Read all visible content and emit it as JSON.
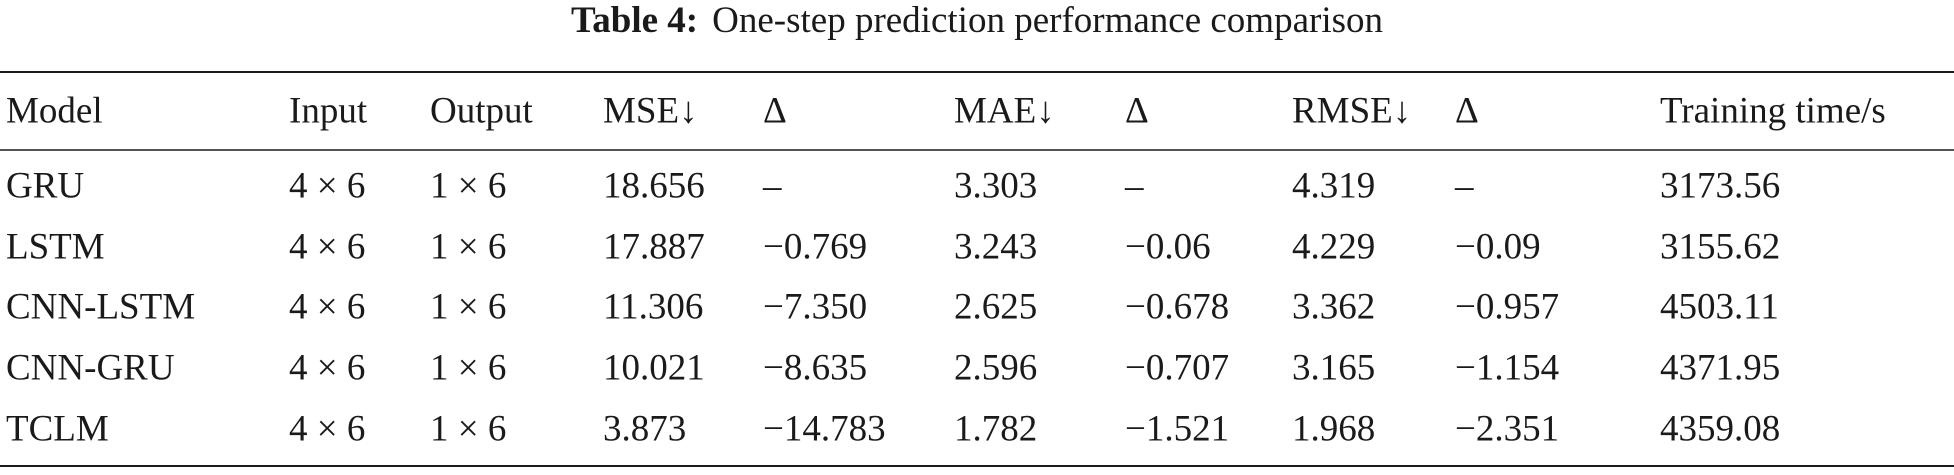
{
  "title": {
    "label": "Table 4:",
    "text": "One-step prediction performance comparison"
  },
  "table": {
    "header": [
      "Model",
      "Input",
      "Output",
      "MSE↓",
      "Δ",
      "MAE↓",
      "Δ",
      "RMSE↓",
      "Δ",
      "Training time/s"
    ],
    "rows": [
      [
        "GRU",
        "4 × 6",
        "1 × 6",
        "18.656",
        "–",
        "3.303",
        "–",
        "4.319",
        "–",
        "3173.56"
      ],
      [
        "LSTM",
        "4 × 6",
        "1 × 6",
        "17.887",
        "−0.769",
        "3.243",
        "−0.06",
        "4.229",
        "−0.09",
        "3155.62"
      ],
      [
        "CNN-LSTM",
        "4 × 6",
        "1 × 6",
        "11.306",
        "−7.350",
        "2.625",
        "−0.678",
        "3.362",
        "−0.957",
        "4503.11"
      ],
      [
        "CNN-GRU",
        "4 × 6",
        "1 × 6",
        "10.021",
        "−8.635",
        "2.596",
        "−0.707",
        "3.165",
        "−1.154",
        "4371.95"
      ],
      [
        "TCLM",
        "4 × 6",
        "1 × 6",
        "3.873",
        "−14.783",
        "1.782",
        "−1.521",
        "1.968",
        "−2.351",
        "4359.08"
      ]
    ]
  }
}
